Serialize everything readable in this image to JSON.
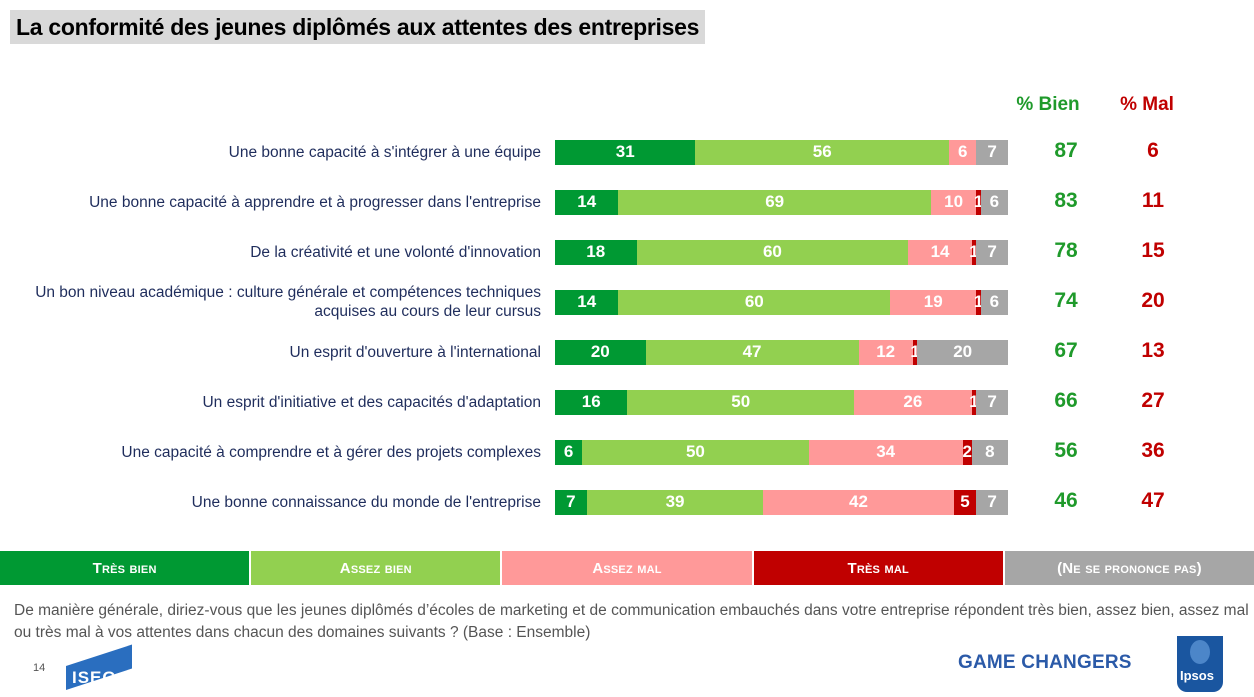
{
  "title": "La conformité des jeunes diplômés aux attentes des entreprises",
  "col_headers": {
    "bien": "% Bien",
    "mal": "% Mal"
  },
  "colors": {
    "tres_bien": "#009933",
    "assez_bien": "#92d050",
    "assez_mal": "#ff9999",
    "tres_mal": "#c00000",
    "nspp": "#a6a6a6",
    "bien_text": "#1f9a2b",
    "mal_text": "#c00000"
  },
  "chart_data": {
    "type": "bar",
    "stacked": true,
    "orientation": "horizontal",
    "xlim": [
      0,
      100
    ],
    "legend_position": "bottom",
    "categories": [
      "Une bonne capacité à s'intégrer à une équipe",
      "Une bonne capacité à apprendre et à progresser dans l'entreprise",
      "De la créativité et une volonté d'innovation",
      "Un bon niveau académique : culture générale et compétences techniques acquises au cours de leur cursus",
      "Un esprit d'ouverture à l'international",
      "Un esprit d'initiative et des capacités d'adaptation",
      "Une capacité à comprendre et à gérer des projets complexes",
      "Une bonne connaissance du monde de l'entreprise"
    ],
    "series": [
      {
        "name": "Très bien",
        "values": [
          31,
          14,
          18,
          14,
          20,
          16,
          6,
          7
        ]
      },
      {
        "name": "Assez bien",
        "values": [
          56,
          69,
          60,
          60,
          47,
          50,
          50,
          39
        ]
      },
      {
        "name": "Assez mal",
        "values": [
          6,
          10,
          14,
          19,
          12,
          26,
          34,
          42
        ]
      },
      {
        "name": "Très mal",
        "values": [
          0,
          1,
          1,
          1,
          1,
          1,
          2,
          5
        ]
      },
      {
        "name": "(Ne se prononce pas)",
        "values": [
          7,
          6,
          7,
          6,
          20,
          7,
          8,
          7
        ]
      }
    ],
    "pct_bien": [
      87,
      83,
      78,
      74,
      67,
      66,
      56,
      46
    ],
    "pct_mal": [
      6,
      11,
      15,
      20,
      13,
      27,
      36,
      47
    ]
  },
  "question": "De manière générale, diriez-vous que les jeunes diplômés d’écoles de marketing et de communication embauchés dans votre entreprise répondent très bien, assez bien, assez mal ou très mal à vos attentes dans chacun des domaines suivants ? (Base : Ensemble)",
  "footer": {
    "page_number": "14",
    "iseg_logo": "ISEG",
    "game_changers": "GAME CHANGERS",
    "ipsos_logo": "Ipsos"
  }
}
